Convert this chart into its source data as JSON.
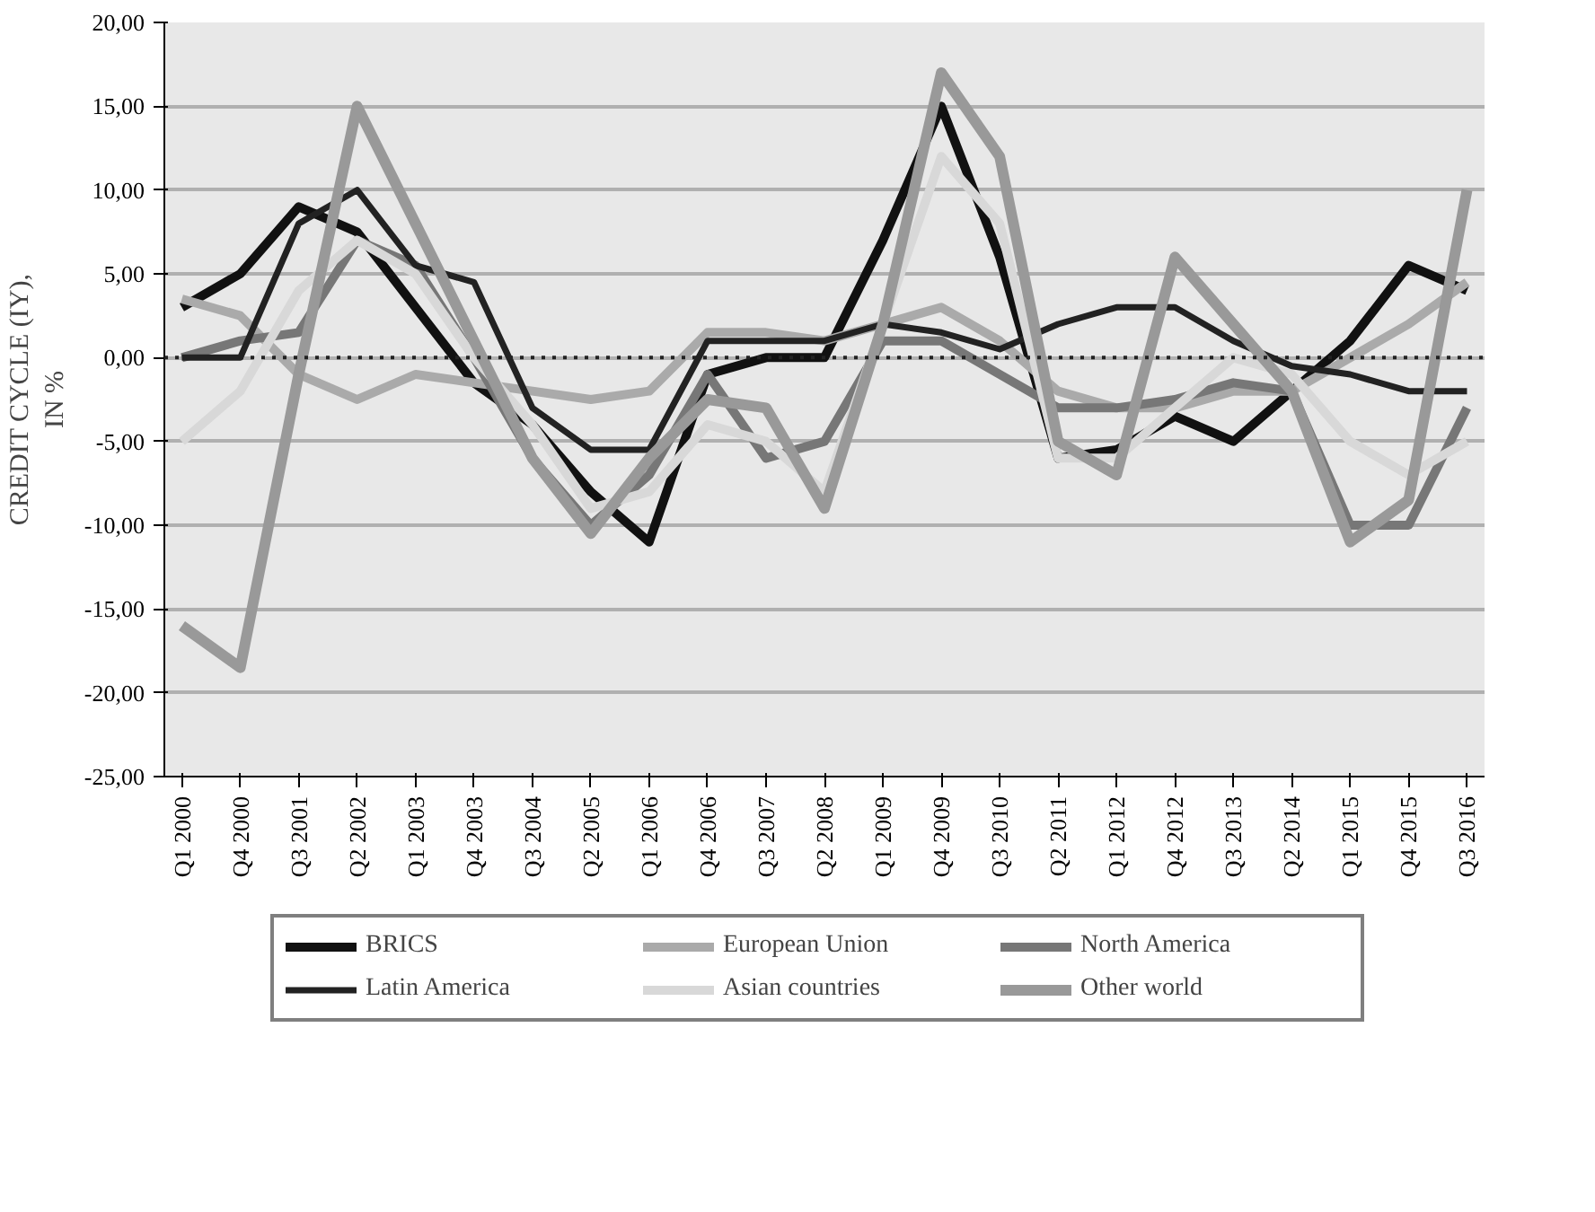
{
  "chart_data": {
    "type": "line",
    "ylabel": "CREDIT CYCLE (IY),\nIN %",
    "categories": [
      "Q1 2000",
      "Q4 2000",
      "Q3 2001",
      "Q2 2002",
      "Q1 2003",
      "Q4 2003",
      "Q3 2004",
      "Q2 2005",
      "Q1 2006",
      "Q4 2006",
      "Q3 2007",
      "Q2 2008",
      "Q1 2009",
      "Q4 2009",
      "Q3 2010",
      "Q2 2011",
      "Q1 2012",
      "Q4 2012",
      "Q3 2013",
      "Q2 2014",
      "Q1 2015",
      "Q4 2015",
      "Q3 2016"
    ],
    "series": [
      {
        "name": "BRICS",
        "color": "#111111",
        "values": [
          3,
          5,
          9,
          7.5,
          3,
          -1.5,
          -4,
          -8,
          -11,
          -1,
          0,
          0,
          7,
          15,
          6,
          -6,
          -5.5,
          -3.5,
          -5,
          -2,
          1,
          5.5,
          4
        ]
      },
      {
        "name": "European Union",
        "color": "#aaaaaa",
        "values": [
          3.5,
          2.5,
          -1,
          -2.5,
          -1,
          -1.5,
          -2,
          -2.5,
          -2,
          1.5,
          1.5,
          1,
          2,
          3,
          1,
          -2,
          -3,
          -3,
          -2,
          -2,
          0,
          2,
          4.5
        ]
      },
      {
        "name": "North America",
        "color": "#777777",
        "values": [
          0,
          1,
          1.5,
          7,
          5.5,
          0,
          -6,
          -10,
          -7,
          -1,
          -6,
          -5,
          1,
          1,
          -1,
          -3,
          -3,
          -2.5,
          -1.5,
          -2,
          -10,
          -10,
          -3
        ]
      },
      {
        "name": "Latin America",
        "color": "#222222",
        "values": [
          0,
          0,
          8,
          10,
          5.5,
          4.5,
          -3,
          -5.5,
          -5.5,
          1,
          1,
          1,
          2,
          1.5,
          0.5,
          2,
          3,
          3,
          1,
          -0.5,
          -1,
          -2,
          -2
        ]
      },
      {
        "name": "Asian countries",
        "color": "#d8d8d8",
        "values": [
          -5,
          -2,
          4,
          7,
          5,
          0,
          -4,
          -9,
          -8,
          -4,
          -5,
          -8,
          2,
          12,
          8,
          -6,
          -6,
          -3,
          0,
          -1,
          -5,
          -7,
          -5
        ]
      },
      {
        "name": "Other world",
        "color": "#999999",
        "values": [
          -16,
          -18.5,
          -1,
          15,
          8,
          1,
          -6,
          -10.5,
          -6,
          -2.5,
          -3,
          -9,
          2,
          17,
          12,
          -5,
          -7,
          6,
          2,
          -2,
          -11,
          -8.5,
          10
        ]
      }
    ],
    "ylim": [
      -25,
      20
    ],
    "yticks": [
      {
        "value": -25,
        "label": "-25,00"
      },
      {
        "value": -20,
        "label": "-20,00"
      },
      {
        "value": -15,
        "label": "-15,00"
      },
      {
        "value": -10,
        "label": "-10,00"
      },
      {
        "value": -5,
        "label": "-5,00"
      },
      {
        "value": 0,
        "label": "0,00"
      },
      {
        "value": 5,
        "label": "5,00"
      },
      {
        "value": 10,
        "label": "10,00"
      },
      {
        "value": 15,
        "label": "15,00"
      },
      {
        "value": 20,
        "label": "20,00"
      }
    ],
    "ref_lines": [
      {
        "axis": "y",
        "value": 0,
        "line_style": "dotted",
        "color": "#222222"
      }
    ],
    "grid": "y",
    "legend": "bottom",
    "marker": "none",
    "line_style": "solid"
  }
}
